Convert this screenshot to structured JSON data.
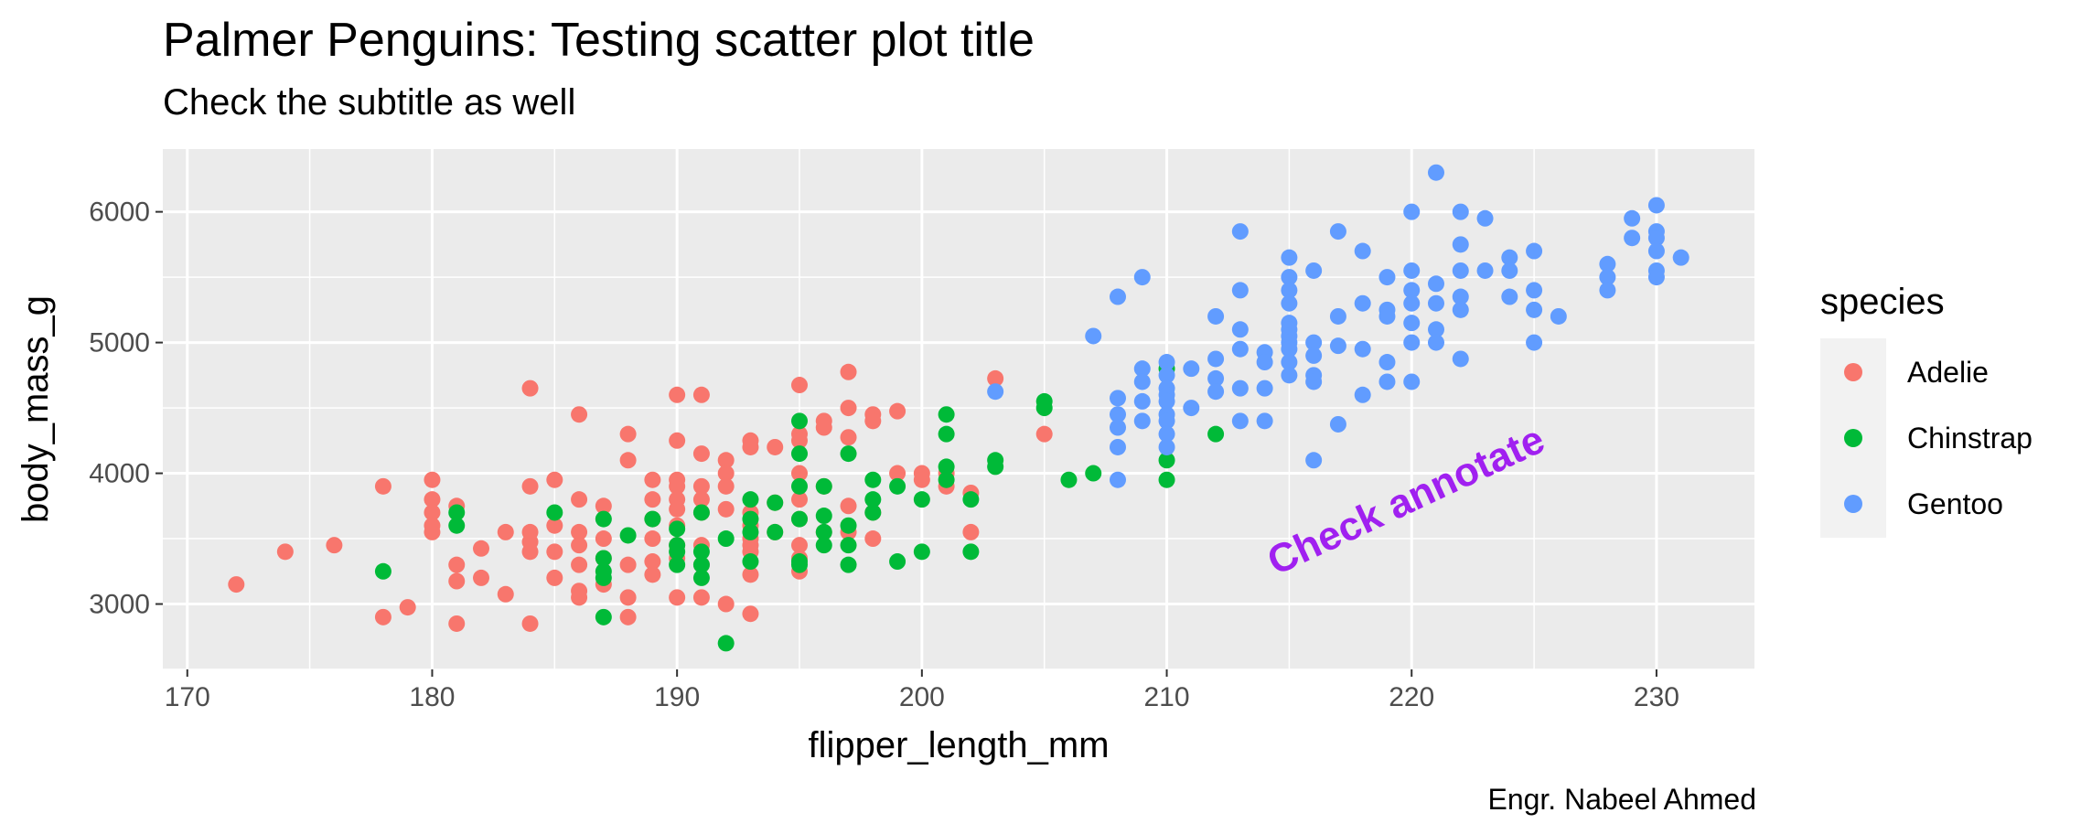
{
  "chart_data": {
    "type": "scatter",
    "title": "Palmer Penguins: Testing scatter plot title",
    "subtitle": "Check the subtitle as well",
    "caption": "Engr. Nabeel Ahmed",
    "xlabel": "flipper_length_mm",
    "ylabel": "body_mass_g",
    "xlim": [
      169,
      234
    ],
    "ylim": [
      2500,
      6480
    ],
    "xticks": [
      170,
      180,
      190,
      200,
      210,
      220,
      230
    ],
    "yticks": [
      3000,
      4000,
      5000,
      6000
    ],
    "grid": true,
    "legend": {
      "title": "species",
      "position": "right"
    },
    "annotation": {
      "text": "Check annotate",
      "x": 220,
      "y": 3700,
      "angle": 25,
      "color": "#a020f0"
    },
    "series": [
      {
        "name": "Adelie",
        "color": "#f8766d",
        "points": [
          [
            172,
            3150
          ],
          [
            174,
            3400
          ],
          [
            176,
            3450
          ],
          [
            178,
            3900
          ],
          [
            178,
            2900
          ],
          [
            179,
            2975
          ],
          [
            180,
            3950
          ],
          [
            180,
            3800
          ],
          [
            180,
            3700
          ],
          [
            180,
            3600
          ],
          [
            180,
            3550
          ],
          [
            181,
            3300
          ],
          [
            181,
            3175
          ],
          [
            181,
            2850
          ],
          [
            181,
            3750
          ],
          [
            182,
            3425
          ],
          [
            182,
            3200
          ],
          [
            183,
            3075
          ],
          [
            183,
            3550
          ],
          [
            184,
            4650
          ],
          [
            184,
            3900
          ],
          [
            184,
            3550
          ],
          [
            184,
            3475
          ],
          [
            184,
            3400
          ],
          [
            184,
            2850
          ],
          [
            185,
            3950
          ],
          [
            185,
            3600
          ],
          [
            185,
            3400
          ],
          [
            185,
            3200
          ],
          [
            186,
            4450
          ],
          [
            186,
            3800
          ],
          [
            186,
            3550
          ],
          [
            186,
            3450
          ],
          [
            186,
            3300
          ],
          [
            186,
            3100
          ],
          [
            186,
            3050
          ],
          [
            187,
            3750
          ],
          [
            187,
            3500
          ],
          [
            187,
            3350
          ],
          [
            187,
            3150
          ],
          [
            188,
            4300
          ],
          [
            188,
            4100
          ],
          [
            188,
            3300
          ],
          [
            188,
            3050
          ],
          [
            188,
            2900
          ],
          [
            189,
            3950
          ],
          [
            189,
            3800
          ],
          [
            189,
            3650
          ],
          [
            189,
            3500
          ],
          [
            189,
            3325
          ],
          [
            189,
            3225
          ],
          [
            190,
            4600
          ],
          [
            190,
            4250
          ],
          [
            190,
            3950
          ],
          [
            190,
            3900
          ],
          [
            190,
            3800
          ],
          [
            190,
            3725
          ],
          [
            190,
            3600
          ],
          [
            190,
            3450
          ],
          [
            190,
            3350
          ],
          [
            190,
            3050
          ],
          [
            191,
            4600
          ],
          [
            191,
            4150
          ],
          [
            191,
            3900
          ],
          [
            191,
            3800
          ],
          [
            191,
            3700
          ],
          [
            191,
            3450
          ],
          [
            191,
            3300
          ],
          [
            191,
            3050
          ],
          [
            192,
            4100
          ],
          [
            192,
            4000
          ],
          [
            192,
            3900
          ],
          [
            192,
            3725
          ],
          [
            192,
            3000
          ],
          [
            193,
            4250
          ],
          [
            193,
            4200
          ],
          [
            193,
            3700
          ],
          [
            193,
            3600
          ],
          [
            193,
            3500
          ],
          [
            193,
            3450
          ],
          [
            193,
            3400
          ],
          [
            193,
            3225
          ],
          [
            193,
            2925
          ],
          [
            194,
            4200
          ],
          [
            194,
            3775
          ],
          [
            194,
            3550
          ],
          [
            195,
            4675
          ],
          [
            195,
            4300
          ],
          [
            195,
            4250
          ],
          [
            195,
            4000
          ],
          [
            195,
            3800
          ],
          [
            195,
            3650
          ],
          [
            195,
            3450
          ],
          [
            195,
            3350
          ],
          [
            195,
            3250
          ],
          [
            196,
            4400
          ],
          [
            196,
            4350
          ],
          [
            196,
            3900
          ],
          [
            196,
            3550
          ],
          [
            197,
            4775
          ],
          [
            197,
            4500
          ],
          [
            197,
            4275
          ],
          [
            197,
            3750
          ],
          [
            197,
            3550
          ],
          [
            198,
            4450
          ],
          [
            198,
            4400
          ],
          [
            198,
            3700
          ],
          [
            198,
            3500
          ],
          [
            199,
            4475
          ],
          [
            199,
            4000
          ],
          [
            200,
            4000
          ],
          [
            200,
            3950
          ],
          [
            201,
            4000
          ],
          [
            201,
            3900
          ],
          [
            202,
            3850
          ],
          [
            202,
            3550
          ],
          [
            203,
            4725
          ],
          [
            205,
            4300
          ]
        ]
      },
      {
        "name": "Chinstrap",
        "color": "#00ba38",
        "points": [
          [
            178,
            3250
          ],
          [
            181,
            3700
          ],
          [
            181,
            3600
          ],
          [
            185,
            3700
          ],
          [
            187,
            3650
          ],
          [
            187,
            3350
          ],
          [
            187,
            3250
          ],
          [
            187,
            3200
          ],
          [
            187,
            2900
          ],
          [
            188,
            3525
          ],
          [
            189,
            3650
          ],
          [
            190,
            3575
          ],
          [
            190,
            3450
          ],
          [
            190,
            3400
          ],
          [
            190,
            3300
          ],
          [
            191,
            3700
          ],
          [
            191,
            3400
          ],
          [
            191,
            3300
          ],
          [
            191,
            3200
          ],
          [
            192,
            3500
          ],
          [
            192,
            2700
          ],
          [
            193,
            3800
          ],
          [
            193,
            3650
          ],
          [
            193,
            3550
          ],
          [
            193,
            3325
          ],
          [
            194,
            3775
          ],
          [
            194,
            3550
          ],
          [
            195,
            4400
          ],
          [
            195,
            4150
          ],
          [
            195,
            3900
          ],
          [
            195,
            3650
          ],
          [
            195,
            3325
          ],
          [
            195,
            3300
          ],
          [
            196,
            3900
          ],
          [
            196,
            3675
          ],
          [
            196,
            3550
          ],
          [
            196,
            3450
          ],
          [
            197,
            4150
          ],
          [
            197,
            3600
          ],
          [
            197,
            3450
          ],
          [
            197,
            3300
          ],
          [
            198,
            3950
          ],
          [
            198,
            3800
          ],
          [
            198,
            3700
          ],
          [
            199,
            3900
          ],
          [
            199,
            3325
          ],
          [
            200,
            3800
          ],
          [
            200,
            3400
          ],
          [
            201,
            4450
          ],
          [
            201,
            4300
          ],
          [
            201,
            4050
          ],
          [
            201,
            3950
          ],
          [
            202,
            3800
          ],
          [
            202,
            3400
          ],
          [
            203,
            4100
          ],
          [
            203,
            4050
          ],
          [
            205,
            4550
          ],
          [
            205,
            4500
          ],
          [
            206,
            3950
          ],
          [
            207,
            4000
          ],
          [
            210,
            4800
          ],
          [
            210,
            4100
          ],
          [
            210,
            3950
          ],
          [
            212,
            4300
          ]
        ]
      },
      {
        "name": "Gentoo",
        "color": "#619cff",
        "points": [
          [
            203,
            4625
          ],
          [
            207,
            5050
          ],
          [
            208,
            5350
          ],
          [
            208,
            4575
          ],
          [
            208,
            4450
          ],
          [
            208,
            4350
          ],
          [
            208,
            4200
          ],
          [
            208,
            3950
          ],
          [
            209,
            5500
          ],
          [
            209,
            4800
          ],
          [
            209,
            4700
          ],
          [
            209,
            4550
          ],
          [
            209,
            4400
          ],
          [
            210,
            4850
          ],
          [
            210,
            4750
          ],
          [
            210,
            4650
          ],
          [
            210,
            4600
          ],
          [
            210,
            4550
          ],
          [
            210,
            4450
          ],
          [
            210,
            4400
          ],
          [
            210,
            4300
          ],
          [
            210,
            4200
          ],
          [
            211,
            4800
          ],
          [
            211,
            4500
          ],
          [
            212,
            5200
          ],
          [
            212,
            4875
          ],
          [
            212,
            4725
          ],
          [
            212,
            4625
          ],
          [
            213,
            5850
          ],
          [
            213,
            5400
          ],
          [
            213,
            5100
          ],
          [
            213,
            4950
          ],
          [
            213,
            4650
          ],
          [
            213,
            4400
          ],
          [
            214,
            4925
          ],
          [
            214,
            4850
          ],
          [
            214,
            4650
          ],
          [
            214,
            4400
          ],
          [
            215,
            5650
          ],
          [
            215,
            5500
          ],
          [
            215,
            5400
          ],
          [
            215,
            5300
          ],
          [
            215,
            5150
          ],
          [
            215,
            5100
          ],
          [
            215,
            5050
          ],
          [
            215,
            5000
          ],
          [
            215,
            4950
          ],
          [
            215,
            4850
          ],
          [
            215,
            4750
          ],
          [
            216,
            5550
          ],
          [
            216,
            5000
          ],
          [
            216,
            4900
          ],
          [
            216,
            4750
          ],
          [
            216,
            4700
          ],
          [
            216,
            4100
          ],
          [
            217,
            5850
          ],
          [
            217,
            5200
          ],
          [
            217,
            4975
          ],
          [
            217,
            4375
          ],
          [
            218,
            5700
          ],
          [
            218,
            5300
          ],
          [
            218,
            4950
          ],
          [
            218,
            4600
          ],
          [
            219,
            5500
          ],
          [
            219,
            5250
          ],
          [
            219,
            5200
          ],
          [
            219,
            4850
          ],
          [
            219,
            4700
          ],
          [
            220,
            6000
          ],
          [
            220,
            5550
          ],
          [
            220,
            5400
          ],
          [
            220,
            5300
          ],
          [
            220,
            5150
          ],
          [
            220,
            5000
          ],
          [
            220,
            4700
          ],
          [
            221,
            6300
          ],
          [
            221,
            5450
          ],
          [
            221,
            5300
          ],
          [
            221,
            5100
          ],
          [
            221,
            5000
          ],
          [
            222,
            6000
          ],
          [
            222,
            5750
          ],
          [
            222,
            5550
          ],
          [
            222,
            5350
          ],
          [
            222,
            5250
          ],
          [
            222,
            4875
          ],
          [
            223,
            5950
          ],
          [
            223,
            5550
          ],
          [
            224,
            5650
          ],
          [
            224,
            5550
          ],
          [
            224,
            5350
          ],
          [
            225,
            5700
          ],
          [
            225,
            5400
          ],
          [
            225,
            5250
          ],
          [
            225,
            5000
          ],
          [
            226,
            5200
          ],
          [
            228,
            5600
          ],
          [
            228,
            5500
          ],
          [
            228,
            5400
          ],
          [
            229,
            5950
          ],
          [
            229,
            5800
          ],
          [
            230,
            6050
          ],
          [
            230,
            5850
          ],
          [
            230,
            5800
          ],
          [
            230,
            5700
          ],
          [
            230,
            5550
          ],
          [
            230,
            5500
          ],
          [
            231,
            5650
          ]
        ]
      }
    ]
  }
}
